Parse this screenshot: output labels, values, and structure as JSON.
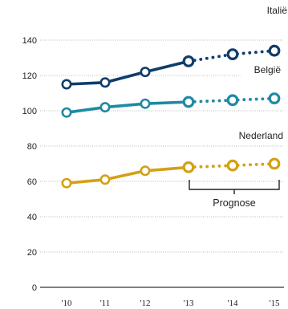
{
  "chart_data": {
    "type": "line",
    "x": [
      "'10",
      "'11",
      "'12",
      "'13",
      "'14",
      "'15"
    ],
    "y_ticks": [
      0,
      20,
      40,
      60,
      80,
      100,
      120,
      140
    ],
    "ylim": [
      0,
      145
    ],
    "grid": true,
    "series": [
      {
        "name": "Italië",
        "values": [
          115,
          116,
          122,
          128,
          132,
          134
        ],
        "color": "#0f3d6b"
      },
      {
        "name": "België",
        "values": [
          99,
          102,
          104,
          105,
          106,
          107
        ],
        "color": "#1e8aa3"
      },
      {
        "name": "Nederland",
        "values": [
          59,
          61,
          66,
          68,
          69,
          70
        ],
        "color": "#d4a017"
      }
    ],
    "forecast_from_index": 3,
    "annotation": "Prognose"
  }
}
